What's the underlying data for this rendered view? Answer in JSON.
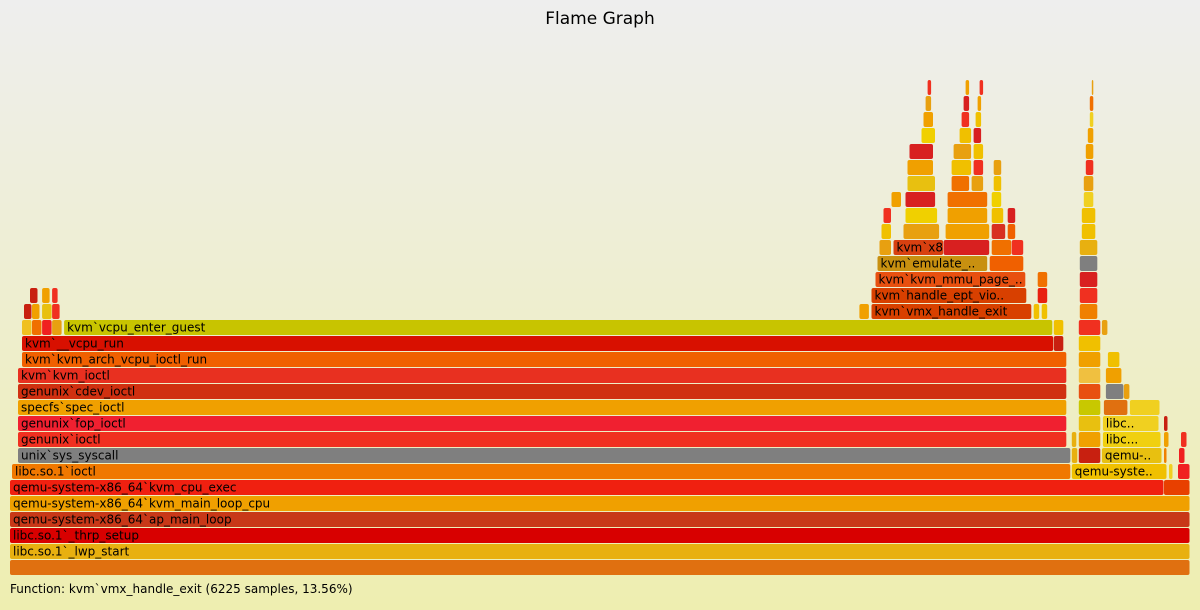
{
  "chart_data": {
    "type": "flamegraph",
    "title": "Flame Graph",
    "status_text": "Function: kvm`vmx_handle_exit (6225 samples, 13.56%)",
    "colors": {
      "background_top": "#eeeeee",
      "background_bottom": "#eeeeb0",
      "highlight_stroke": "#000000",
      "grey": "#7f7f7f"
    },
    "depth_count": 34,
    "total_width": 1178,
    "frames": [
      {
        "d": 0,
        "x": 0,
        "w": 1178,
        "c": "#e07010",
        "label": ""
      },
      {
        "d": 1,
        "x": 0,
        "w": 1178,
        "c": "#e8b010",
        "label": "libc.so.1`_lwp_start"
      },
      {
        "d": 2,
        "x": 0,
        "w": 1178,
        "c": "#d80000",
        "label": "libc.so.1`_thrp_setup"
      },
      {
        "d": 3,
        "x": 0,
        "w": 1178,
        "c": "#c83818",
        "label": "qemu-system-x86_64`ap_main_loop"
      },
      {
        "d": 4,
        "x": 0,
        "w": 1178,
        "c": "#f0a000",
        "label": "qemu-system-x86_64`kvm_main_loop_cpu"
      },
      {
        "d": 5,
        "x": 0,
        "w": 1152,
        "c": "#f02010",
        "label": "qemu-system-x86_64`kvm_cpu_exec"
      },
      {
        "d": 5,
        "x": 1152,
        "w": 26,
        "c": "#e84000",
        "label": ""
      },
      {
        "d": 6,
        "x": 2,
        "w": 1057,
        "c": "#f07800",
        "label": "libc.so.1`ioctl"
      },
      {
        "d": 6,
        "x": 1060,
        "w": 95,
        "c": "#f0c000",
        "label": "qemu-system..."
      },
      {
        "d": 6,
        "x": 1157,
        "w": 4,
        "c": "#f0d020",
        "label": ""
      },
      {
        "d": 6,
        "x": 1166,
        "w": 12,
        "c": "#f02020",
        "label": ""
      },
      {
        "d": 7,
        "x": 8,
        "w": 1051,
        "c": "#7f7f7f",
        "label": "unix`sys_syscall"
      },
      {
        "d": 7,
        "x": 1060,
        "w": 6,
        "c": "#e8b010",
        "label": ""
      },
      {
        "d": 7,
        "x": 1067,
        "w": 22,
        "c": "#c82010",
        "label": ""
      },
      {
        "d": 7,
        "x": 1090,
        "w": 60,
        "c": "#e8c010",
        "label": "qemu-sy..."
      },
      {
        "d": 7,
        "x": 1152,
        "w": 3,
        "c": "#f08000",
        "label": ""
      },
      {
        "d": 7,
        "x": 1167,
        "w": 6,
        "c": "#f02020",
        "label": ""
      },
      {
        "d": 8,
        "x": 8,
        "w": 1047,
        "c": "#f03020",
        "label": "genunix`ioctl"
      },
      {
        "d": 8,
        "x": 1060,
        "w": 5,
        "c": "#e8b010",
        "label": ""
      },
      {
        "d": 8,
        "x": 1067,
        "w": 22,
        "c": "#f0a000",
        "label": ""
      },
      {
        "d": 8,
        "x": 1091,
        "w": 58,
        "c": "#f0d010",
        "label": "libc.s.."
      },
      {
        "d": 8,
        "x": 1152,
        "w": 5,
        "c": "#f0a000",
        "label": ""
      },
      {
        "d": 8,
        "x": 1169,
        "w": 6,
        "c": "#f03020",
        "label": ""
      },
      {
        "d": 9,
        "x": 8,
        "w": 1047,
        "c": "#f02030",
        "label": "genunix`fop_ioctl"
      },
      {
        "d": 9,
        "x": 1067,
        "w": 22,
        "c": "#e8c010",
        "label": ""
      },
      {
        "d": 9,
        "x": 1091,
        "w": 56,
        "c": "#f0d020",
        "label": "libc.s.."
      },
      {
        "d": 9,
        "x": 1152,
        "w": 4,
        "c": "#c82010",
        "label": ""
      },
      {
        "d": 10,
        "x": 8,
        "w": 1047,
        "c": "#f0a000",
        "label": "specfs`spec_ioctl"
      },
      {
        "d": 10,
        "x": 1067,
        "w": 22,
        "c": "#c8c800",
        "label": ""
      },
      {
        "d": 10,
        "x": 1092,
        "w": 24,
        "c": "#e07010",
        "label": ""
      },
      {
        "d": 10,
        "x": 1118,
        "w": 30,
        "c": "#f0d020",
        "label": ""
      },
      {
        "d": 11,
        "x": 8,
        "w": 1047,
        "c": "#d03010",
        "label": "genunix`cdev_ioctl"
      },
      {
        "d": 11,
        "x": 1067,
        "w": 22,
        "c": "#e85010",
        "label": ""
      },
      {
        "d": 11,
        "x": 1094,
        "w": 18,
        "c": "#7f7f7f",
        "label": ""
      },
      {
        "d": 11,
        "x": 1112,
        "w": 6,
        "c": "#e8a010",
        "label": ""
      },
      {
        "d": 12,
        "x": 8,
        "w": 1047,
        "c": "#e83020",
        "label": "kvm`kvm_ioctl"
      },
      {
        "d": 12,
        "x": 1067,
        "w": 22,
        "c": "#f0c040",
        "label": ""
      },
      {
        "d": 12,
        "x": 1094,
        "w": 16,
        "c": "#f0a000",
        "label": ""
      },
      {
        "d": 13,
        "x": 12,
        "w": 1043,
        "c": "#f06000",
        "label": "kvm`kvm_arch_vcpu_ioctl_run"
      },
      {
        "d": 13,
        "x": 1067,
        "w": 22,
        "c": "#f0a000",
        "label": ""
      },
      {
        "d": 13,
        "x": 1096,
        "w": 12,
        "c": "#f0c000",
        "label": ""
      },
      {
        "d": 14,
        "x": 12,
        "w": 1030,
        "c": "#d81000",
        "label": "kvm`__vcpu_run"
      },
      {
        "d": 14,
        "x": 1042,
        "w": 10,
        "c": "#c82010",
        "label": ""
      },
      {
        "d": 14,
        "x": 1067,
        "w": 22,
        "c": "#f0c000",
        "label": ""
      },
      {
        "d": 15,
        "x": 12,
        "w": 10,
        "c": "#f0c020",
        "label": ""
      },
      {
        "d": 15,
        "x": 22,
        "w": 10,
        "c": "#f07000",
        "label": ""
      },
      {
        "d": 15,
        "x": 32,
        "w": 10,
        "c": "#f02020",
        "label": ""
      },
      {
        "d": 15,
        "x": 42,
        "w": 10,
        "c": "#e8a010",
        "label": ""
      },
      {
        "d": 15,
        "x": 54,
        "w": 987,
        "c": "#c8c400",
        "label": "kvm`vcpu_enter_guest"
      },
      {
        "d": 15,
        "x": 1042,
        "w": 10,
        "c": "#f0c000",
        "label": ""
      },
      {
        "d": 15,
        "x": 1067,
        "w": 22,
        "c": "#f03020",
        "label": ""
      },
      {
        "d": 15,
        "x": 1090,
        "w": 6,
        "c": "#e8a010",
        "label": ""
      },
      {
        "d": 16,
        "x": 14,
        "w": 8,
        "c": "#c82010",
        "label": ""
      },
      {
        "d": 16,
        "x": 22,
        "w": 8,
        "c": "#f0a000",
        "label": ""
      },
      {
        "d": 16,
        "x": 32,
        "w": 10,
        "c": "#e8c010",
        "label": ""
      },
      {
        "d": 16,
        "x": 42,
        "w": 8,
        "c": "#f03020",
        "label": ""
      },
      {
        "d": 16,
        "x": 848,
        "w": 10,
        "c": "#f0a000",
        "label": ""
      },
      {
        "d": 16,
        "x": 860,
        "w": 160,
        "c": "#d84000",
        "label": "kvm`vmx_handle_exit"
      },
      {
        "d": 16,
        "x": 1022,
        "w": 6,
        "c": "#f0c000",
        "label": ""
      },
      {
        "d": 16,
        "x": 1030,
        "w": 6,
        "c": "#f0c000",
        "label": ""
      },
      {
        "d": 16,
        "x": 1068,
        "w": 18,
        "c": "#f08000",
        "label": ""
      },
      {
        "d": 17,
        "x": 20,
        "w": 8,
        "c": "#c82010",
        "label": ""
      },
      {
        "d": 17,
        "x": 32,
        "w": 8,
        "c": "#f0a000",
        "label": ""
      },
      {
        "d": 17,
        "x": 42,
        "w": 6,
        "c": "#f03020",
        "label": ""
      },
      {
        "d": 17,
        "x": 860,
        "w": 155,
        "c": "#d84000",
        "label": "kvm`handle_ept_vio.."
      },
      {
        "d": 17,
        "x": 1026,
        "w": 10,
        "c": "#e82010",
        "label": ""
      },
      {
        "d": 17,
        "x": 1068,
        "w": 18,
        "c": "#f03020",
        "label": ""
      },
      {
        "d": 18,
        "x": 864,
        "w": 150,
        "c": "#e85010",
        "label": "kvm`kvm_mmu_page_.."
      },
      {
        "d": 18,
        "x": 1026,
        "w": 10,
        "c": "#f07000",
        "label": ""
      },
      {
        "d": 18,
        "x": 1068,
        "w": 18,
        "c": "#d82020",
        "label": ""
      },
      {
        "d": 19,
        "x": 866,
        "w": 110,
        "c": "#c89010",
        "label": "kvm`emulate_i.."
      },
      {
        "d": 19,
        "x": 978,
        "w": 34,
        "c": "#f06000",
        "label": ""
      },
      {
        "d": 19,
        "x": 1068,
        "w": 18,
        "c": "#7f7f7f",
        "label": ""
      },
      {
        "d": 20,
        "x": 868,
        "w": 12,
        "c": "#e8a010",
        "label": ""
      },
      {
        "d": 20,
        "x": 882,
        "w": 50,
        "c": "#d84010",
        "label": "kvm`x8"
      },
      {
        "d": 20,
        "x": 932,
        "w": 46,
        "c": "#d82020",
        "label": ""
      },
      {
        "d": 20,
        "x": 980,
        "w": 20,
        "c": "#f07000",
        "label": ""
      },
      {
        "d": 20,
        "x": 1000,
        "w": 12,
        "c": "#f03020",
        "label": ""
      },
      {
        "d": 20,
        "x": 1068,
        "w": 18,
        "c": "#e8b010",
        "label": ""
      },
      {
        "d": 21,
        "x": 870,
        "w": 10,
        "c": "#f0c000",
        "label": ""
      },
      {
        "d": 21,
        "x": 892,
        "w": 36,
        "c": "#e8a010",
        "label": ""
      },
      {
        "d": 21,
        "x": 934,
        "w": 44,
        "c": "#f0a000",
        "label": ""
      },
      {
        "d": 21,
        "x": 980,
        "w": 14,
        "c": "#d83020",
        "label": ""
      },
      {
        "d": 21,
        "x": 996,
        "w": 8,
        "c": "#f06000",
        "label": ""
      },
      {
        "d": 21,
        "x": 1070,
        "w": 14,
        "c": "#f0c000",
        "label": ""
      },
      {
        "d": 22,
        "x": 872,
        "w": 8,
        "c": "#f03020",
        "label": ""
      },
      {
        "d": 22,
        "x": 894,
        "w": 32,
        "c": "#f0d000",
        "label": ""
      },
      {
        "d": 22,
        "x": 936,
        "w": 40,
        "c": "#f0a000",
        "label": ""
      },
      {
        "d": 22,
        "x": 980,
        "w": 12,
        "c": "#f0c000",
        "label": ""
      },
      {
        "d": 22,
        "x": 996,
        "w": 8,
        "c": "#d82020",
        "label": ""
      },
      {
        "d": 22,
        "x": 1070,
        "w": 14,
        "c": "#f0c000",
        "label": ""
      },
      {
        "d": 23,
        "x": 880,
        "w": 10,
        "c": "#f0a000",
        "label": ""
      },
      {
        "d": 23,
        "x": 894,
        "w": 30,
        "c": "#d82020",
        "label": ""
      },
      {
        "d": 23,
        "x": 936,
        "w": 40,
        "c": "#f07000",
        "label": ""
      },
      {
        "d": 23,
        "x": 980,
        "w": 10,
        "c": "#f0d000",
        "label": ""
      },
      {
        "d": 23,
        "x": 1072,
        "w": 10,
        "c": "#f0d020",
        "label": ""
      },
      {
        "d": 24,
        "x": 896,
        "w": 28,
        "c": "#e8c010",
        "label": ""
      },
      {
        "d": 24,
        "x": 940,
        "w": 18,
        "c": "#f07000",
        "label": ""
      },
      {
        "d": 24,
        "x": 960,
        "w": 12,
        "c": "#e8a010",
        "label": ""
      },
      {
        "d": 24,
        "x": 982,
        "w": 8,
        "c": "#f0c000",
        "label": ""
      },
      {
        "d": 24,
        "x": 1072,
        "w": 10,
        "c": "#e8a010",
        "label": ""
      },
      {
        "d": 25,
        "x": 896,
        "w": 26,
        "c": "#f0a000",
        "label": ""
      },
      {
        "d": 25,
        "x": 940,
        "w": 20,
        "c": "#f0c000",
        "label": ""
      },
      {
        "d": 25,
        "x": 962,
        "w": 10,
        "c": "#f03020",
        "label": ""
      },
      {
        "d": 25,
        "x": 982,
        "w": 8,
        "c": "#e8a010",
        "label": ""
      },
      {
        "d": 25,
        "x": 1074,
        "w": 8,
        "c": "#f03020",
        "label": ""
      },
      {
        "d": 26,
        "x": 898,
        "w": 24,
        "c": "#d82020",
        "label": ""
      },
      {
        "d": 26,
        "x": 942,
        "w": 18,
        "c": "#e8a010",
        "label": ""
      },
      {
        "d": 26,
        "x": 962,
        "w": 10,
        "c": "#f0c000",
        "label": ""
      },
      {
        "d": 26,
        "x": 1074,
        "w": 8,
        "c": "#f0a000",
        "label": ""
      },
      {
        "d": 27,
        "x": 910,
        "w": 14,
        "c": "#f0d000",
        "label": ""
      },
      {
        "d": 27,
        "x": 948,
        "w": 12,
        "c": "#f0c000",
        "label": ""
      },
      {
        "d": 27,
        "x": 962,
        "w": 8,
        "c": "#d82020",
        "label": ""
      },
      {
        "d": 27,
        "x": 1076,
        "w": 6,
        "c": "#f0a000",
        "label": ""
      },
      {
        "d": 28,
        "x": 912,
        "w": 10,
        "c": "#f0a000",
        "label": ""
      },
      {
        "d": 28,
        "x": 950,
        "w": 8,
        "c": "#f03020",
        "label": ""
      },
      {
        "d": 28,
        "x": 964,
        "w": 6,
        "c": "#f0c000",
        "label": ""
      },
      {
        "d": 28,
        "x": 1078,
        "w": 4,
        "c": "#f0d020",
        "label": ""
      },
      {
        "d": 29,
        "x": 914,
        "w": 6,
        "c": "#e8a010",
        "label": ""
      },
      {
        "d": 29,
        "x": 952,
        "w": 6,
        "c": "#d82020",
        "label": ""
      },
      {
        "d": 29,
        "x": 966,
        "w": 4,
        "c": "#f0a000",
        "label": ""
      },
      {
        "d": 29,
        "x": 1078,
        "w": 4,
        "c": "#f07000",
        "label": ""
      },
      {
        "d": 30,
        "x": 916,
        "w": 4,
        "c": "#f03020",
        "label": ""
      },
      {
        "d": 30,
        "x": 954,
        "w": 4,
        "c": "#f0a000",
        "label": ""
      },
      {
        "d": 30,
        "x": 968,
        "w": 4,
        "c": "#f03020",
        "label": ""
      },
      {
        "d": 30,
        "x": 1080,
        "w": 2,
        "c": "#e8a010",
        "label": ""
      }
    ]
  }
}
